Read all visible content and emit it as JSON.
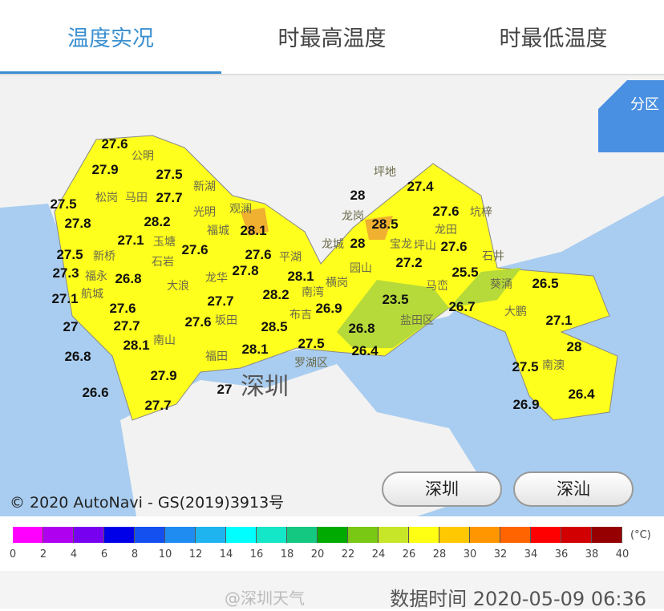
{
  "tabs": [
    {
      "label": "温度实况",
      "active": true
    },
    {
      "label": "时最高温度"
    },
    {
      "label": "时最低温度"
    }
  ],
  "map": {
    "district_button": "分区",
    "city_label": "深圳",
    "copyright": "© 2020 AutoNavi - GS(2019)3913号",
    "buttons": [
      "深圳",
      "深汕"
    ],
    "stations": [
      "27.6",
      "27.9",
      "27.5",
      "27.5",
      "27.7",
      "27.8",
      "28.2",
      "28.1",
      "27.1",
      "27.6",
      "27.6",
      "27.5",
      "27.8",
      "27.3",
      "28.1",
      "26.8",
      "28.2",
      "27.1",
      "27.6",
      "27.7",
      "27",
      "27.7",
      "27.6",
      "28.5",
      "28.1",
      "28.1",
      "27.5",
      "26.8",
      "27.9",
      "27",
      "26.6",
      "27.7",
      "28",
      "27.4",
      "27.6",
      "28.5",
      "28",
      "27.6",
      "27.2",
      "25.5",
      "26.9",
      "23.5",
      "26.8",
      "26.7",
      "26.5",
      "27.1",
      "26.4",
      "28",
      "27.5",
      "26.9",
      "26.4"
    ],
    "districts": [
      "公明",
      "新湖",
      "松岗",
      "马田",
      "光明",
      "新桥",
      "玉塘",
      "福城",
      "观澜",
      "石岩",
      "大浪",
      "平湖",
      "福永",
      "航城",
      "龙华",
      "坂田",
      "南湾",
      "布吉",
      "南山",
      "福田",
      "罗湖区",
      "龙岗",
      "坪地",
      "坑梓",
      "龙田",
      "龙城",
      "宝龙",
      "坪山",
      "石井",
      "园山",
      "横岗",
      "盐田区",
      "葵涌",
      "大鹏",
      "南澳",
      "马峦"
    ]
  },
  "legend": {
    "unit": "(°C)",
    "ticks": [
      "0",
      "2",
      "4",
      "6",
      "8",
      "10",
      "12",
      "14",
      "16",
      "18",
      "20",
      "22",
      "24",
      "26",
      "28",
      "30",
      "32",
      "34",
      "36",
      "38",
      "40"
    ],
    "colors": [
      "#ff00ff",
      "#b000f0",
      "#7800f0",
      "#0000e8",
      "#1450f0",
      "#1e8cf0",
      "#1eb4f0",
      "#00ffff",
      "#14e6c8",
      "#14c882",
      "#00aa00",
      "#78c814",
      "#c8e628",
      "#ffff14",
      "#ffc800",
      "#ff9600",
      "#ff6400",
      "#ff0000",
      "#d20000",
      "#960000"
    ]
  },
  "footer": {
    "watermark": "@深圳天气",
    "time": "数据时间 2020-05-09 06:36"
  }
}
